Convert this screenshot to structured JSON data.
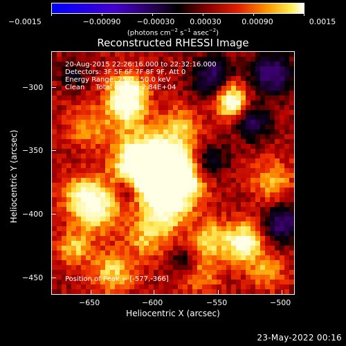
{
  "colorbar": {
    "tick_labels": [
      "−0.0015",
      "−0.00090",
      "−0.00030",
      "0.00030",
      "0.00090",
      "0.0015"
    ],
    "units_main": "(photons cm",
    "units_sup1": "−2",
    "units_mid1": " s",
    "units_sup2": "−1",
    "units_mid2": " asec",
    "units_sup3": "−2",
    "units_end": ")"
  },
  "chart_data": {
    "type": "heatmap",
    "title": "Reconstructed RHESSI Image",
    "xlabel": "Heliocentric X (arcsec)",
    "ylabel": "Heliocentric Y (arcsec)",
    "xlim": [
      -678,
      -488
    ],
    "ylim": [
      -462,
      -272
    ],
    "xticks": [
      -650,
      -600,
      -550,
      -500
    ],
    "yticks": [
      -300,
      -350,
      -400,
      -450
    ],
    "xtick_labels": [
      "−650",
      "−600",
      "−550",
      "−500"
    ],
    "ytick_labels": [
      "−300",
      "−350",
      "−400",
      "−450"
    ],
    "colorbar_range": [
      -0.0015,
      0.0015
    ],
    "colormap": "red-temperature with blue/purple negatives",
    "peak": [
      -577,
      -366
    ],
    "annotations": {
      "time_range": "20-Aug-2015 22:26:16.000 to 22:32:16.000",
      "detectors": "Detectors: 3F 5F 6F 7F 8F 9F, Att 0",
      "energy": "Energy Range: 25.0 - 50.0 keV",
      "clean": "Clean     Total counts: 2.84E+04",
      "peak_text": "Position of Peak = [-577,-366]"
    }
  },
  "timestamp": "23-May-2022 00:16"
}
